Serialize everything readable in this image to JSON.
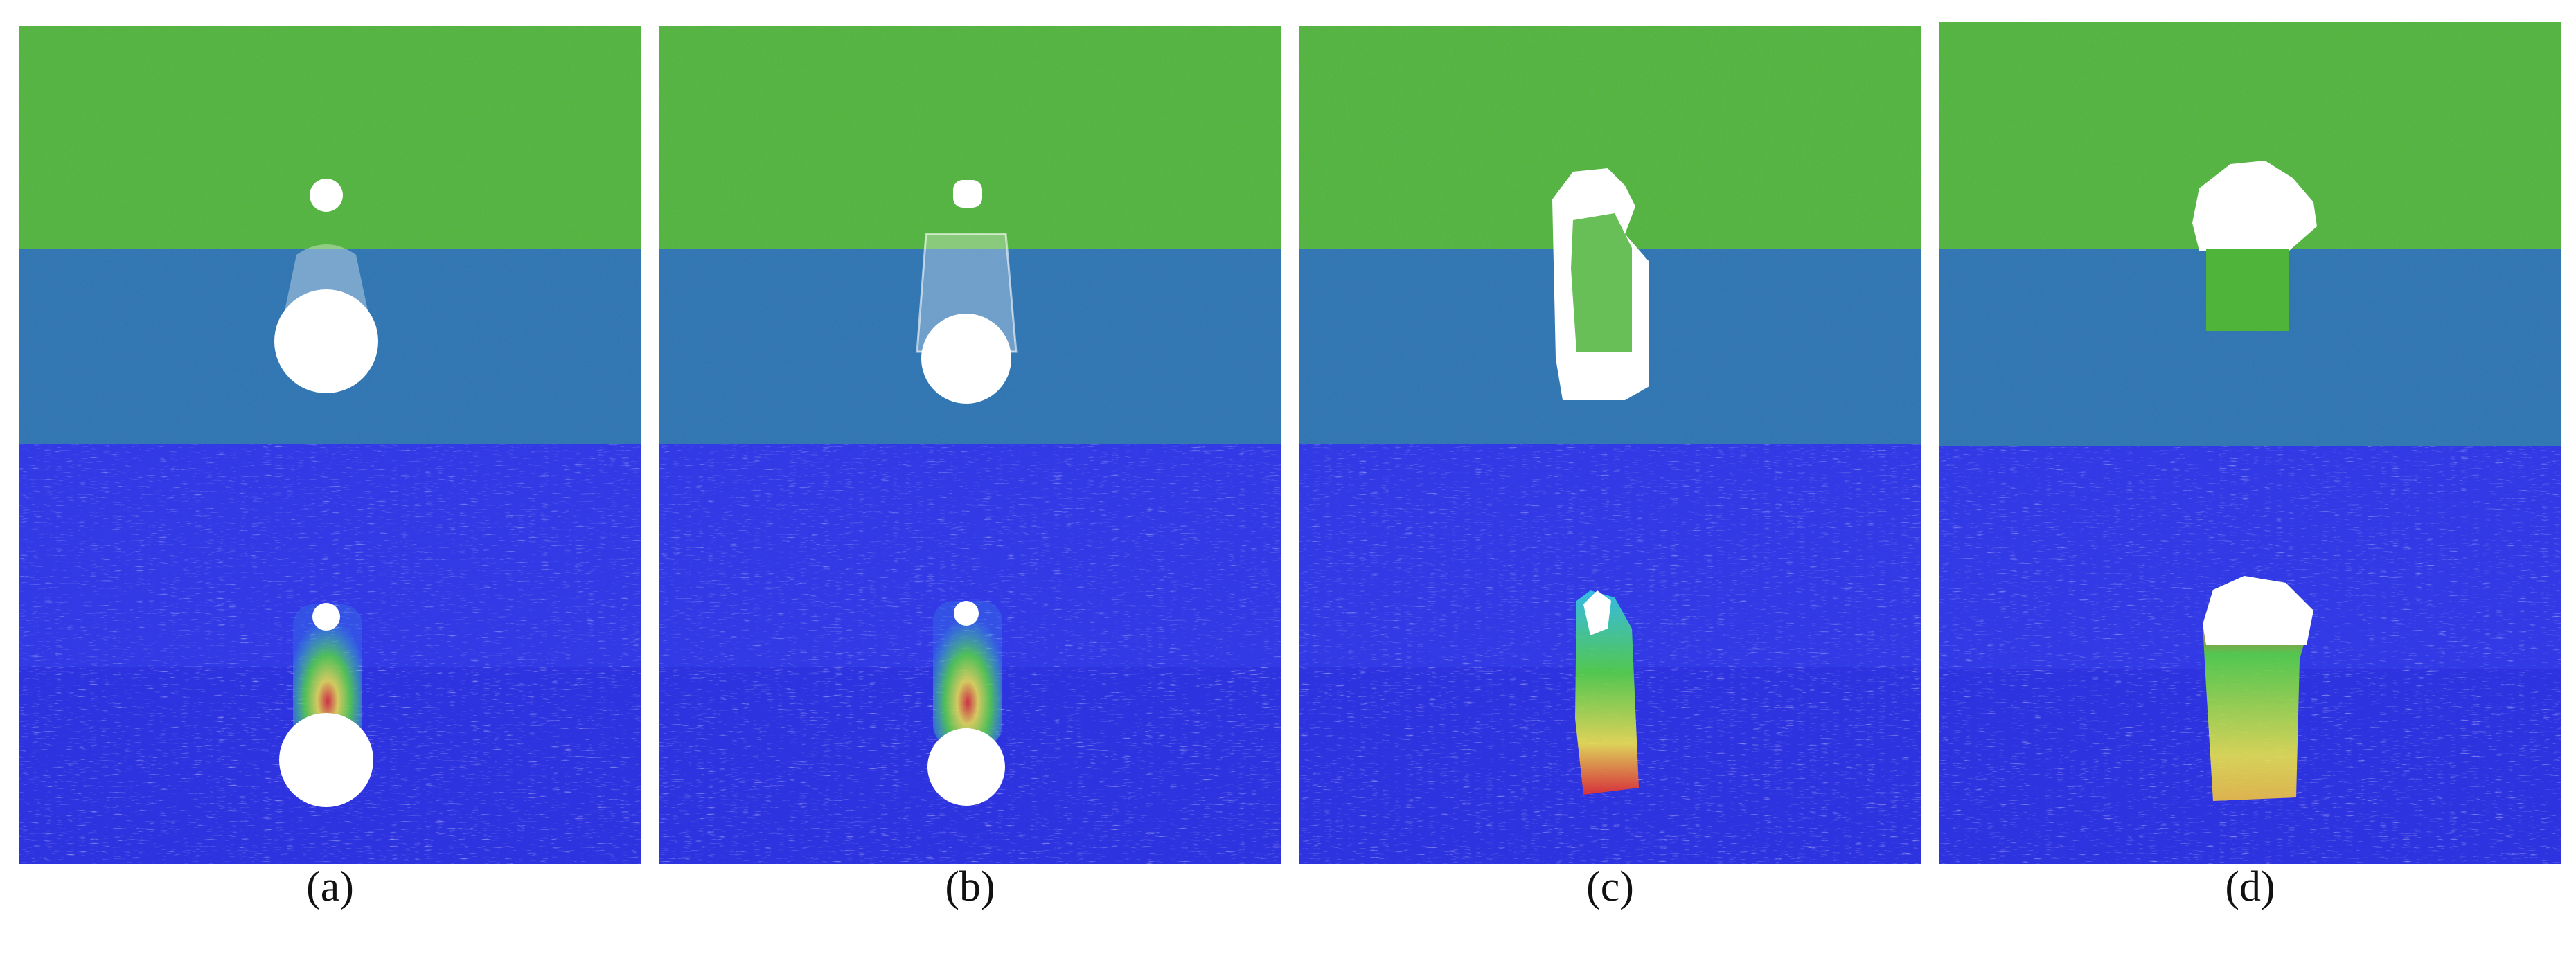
{
  "figure": {
    "panels": [
      {
        "caption": "(a)",
        "stage": 1
      },
      {
        "caption": "(b)",
        "stage": 2
      },
      {
        "caption": "(c)",
        "stage": 3
      },
      {
        "caption": "(d)",
        "stage": 4
      }
    ]
  },
  "colors": {
    "top_layer": "#4fb43a",
    "middle_layer": "#2f74b3",
    "bottom_field": "#2e33e0",
    "void": "#ffffff",
    "stress_low": "#37c8e6",
    "stress_mid": "#55d640",
    "stress_high": "#f0e34a",
    "stress_peak": "#e8302a"
  }
}
